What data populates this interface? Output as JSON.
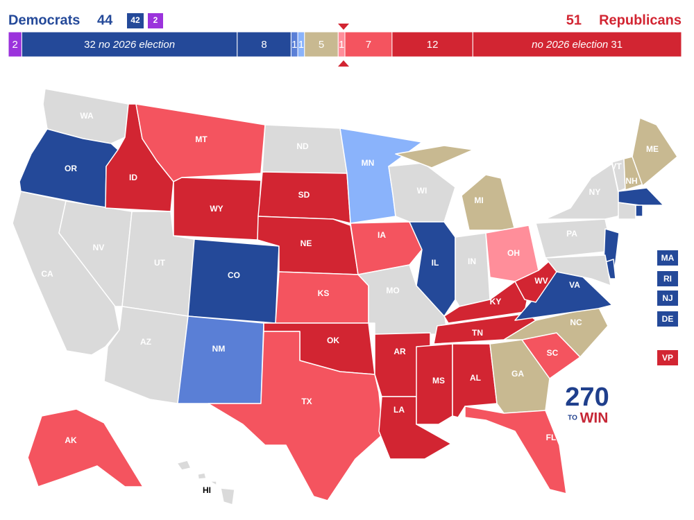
{
  "header": {
    "dem_label": "Democrats",
    "dem_total": "44",
    "dem_holdover": "42",
    "dem_independent": "2",
    "rep_total": "51",
    "rep_label": "Republicans"
  },
  "ratings": {
    "independent": "#9b33dc",
    "safe_d": "#244999",
    "likely_d": "#5a7fd6",
    "lean_d": "#8ab3fb",
    "tossup": "#c8b991",
    "lean_r": "#ff8e9a",
    "likely_r": "#f4545f",
    "safe_r": "#d22532",
    "none": "#dadada"
  },
  "bar": {
    "segments": [
      {
        "seats": 2,
        "rating": "independent"
      },
      {
        "seats": 32,
        "note": "no 2026 election",
        "note_position": "after",
        "rating": "safe_d"
      },
      {
        "seats": 8,
        "rating": "safe_d"
      },
      {
        "seats": 1,
        "rating": "likely_d"
      },
      {
        "seats": 1,
        "rating": "lean_d"
      },
      {
        "seats": 5,
        "rating": "tossup"
      },
      {
        "seats": 1,
        "rating": "lean_r"
      },
      {
        "seats": 7,
        "rating": "likely_r"
      },
      {
        "seats": 12,
        "rating": "safe_r"
      },
      {
        "seats": 31,
        "note": "no 2026 election",
        "note_position": "before",
        "rating": "safe_r"
      }
    ]
  },
  "states": [
    {
      "abbr": "WA",
      "rating": "none"
    },
    {
      "abbr": "OR",
      "rating": "safe_d"
    },
    {
      "abbr": "CA",
      "rating": "none"
    },
    {
      "abbr": "NV",
      "rating": "none"
    },
    {
      "abbr": "ID",
      "rating": "safe_r"
    },
    {
      "abbr": "MT",
      "rating": "likely_r"
    },
    {
      "abbr": "WY",
      "rating": "safe_r"
    },
    {
      "abbr": "UT",
      "rating": "none"
    },
    {
      "abbr": "AZ",
      "rating": "none"
    },
    {
      "abbr": "CO",
      "rating": "safe_d"
    },
    {
      "abbr": "NM",
      "rating": "likely_d"
    },
    {
      "abbr": "ND",
      "rating": "none"
    },
    {
      "abbr": "SD",
      "rating": "safe_r"
    },
    {
      "abbr": "NE",
      "rating": "safe_r"
    },
    {
      "abbr": "KS",
      "rating": "likely_r"
    },
    {
      "abbr": "OK",
      "rating": "safe_r"
    },
    {
      "abbr": "TX",
      "rating": "likely_r"
    },
    {
      "abbr": "MN",
      "rating": "lean_d"
    },
    {
      "abbr": "IA",
      "rating": "likely_r"
    },
    {
      "abbr": "MO",
      "rating": "none"
    },
    {
      "abbr": "AR",
      "rating": "safe_r"
    },
    {
      "abbr": "LA",
      "rating": "safe_r"
    },
    {
      "abbr": "WI",
      "rating": "none"
    },
    {
      "abbr": "IL",
      "rating": "safe_d"
    },
    {
      "abbr": "MI",
      "rating": "tossup"
    },
    {
      "abbr": "IN",
      "rating": "none"
    },
    {
      "abbr": "OH",
      "rating": "lean_r"
    },
    {
      "abbr": "KY",
      "rating": "safe_r"
    },
    {
      "abbr": "TN",
      "rating": "safe_r"
    },
    {
      "abbr": "MS",
      "rating": "safe_r"
    },
    {
      "abbr": "AL",
      "rating": "safe_r"
    },
    {
      "abbr": "GA",
      "rating": "tossup"
    },
    {
      "abbr": "FL",
      "rating": "likely_r"
    },
    {
      "abbr": "SC",
      "rating": "likely_r"
    },
    {
      "abbr": "NC",
      "rating": "tossup"
    },
    {
      "abbr": "VA",
      "rating": "safe_d"
    },
    {
      "abbr": "WV",
      "rating": "safe_r"
    },
    {
      "abbr": "PA",
      "rating": "none"
    },
    {
      "abbr": "NY",
      "rating": "none"
    },
    {
      "abbr": "NJ",
      "rating": "safe_d"
    },
    {
      "abbr": "DE",
      "rating": "safe_d"
    },
    {
      "rating": "none"
    },
    {
      "abbr": "VT",
      "rating": "none"
    },
    {
      "abbr": "NH",
      "rating": "tossup"
    },
    {
      "abbr": "ME",
      "rating": "tossup"
    },
    {
      "abbr": "MA",
      "rating": "safe_d"
    },
    {
      "rating": "none"
    },
    {
      "abbr": "RI",
      "rating": "safe_d"
    },
    {
      "abbr": "AK",
      "rating": "likely_r"
    },
    {
      "abbr": "HI",
      "rating": "none"
    }
  ],
  "vp": {
    "label": "VP",
    "rating": "safe_r"
  },
  "logo": {
    "number": "270",
    "to": "TO",
    "win": "WIN"
  }
}
